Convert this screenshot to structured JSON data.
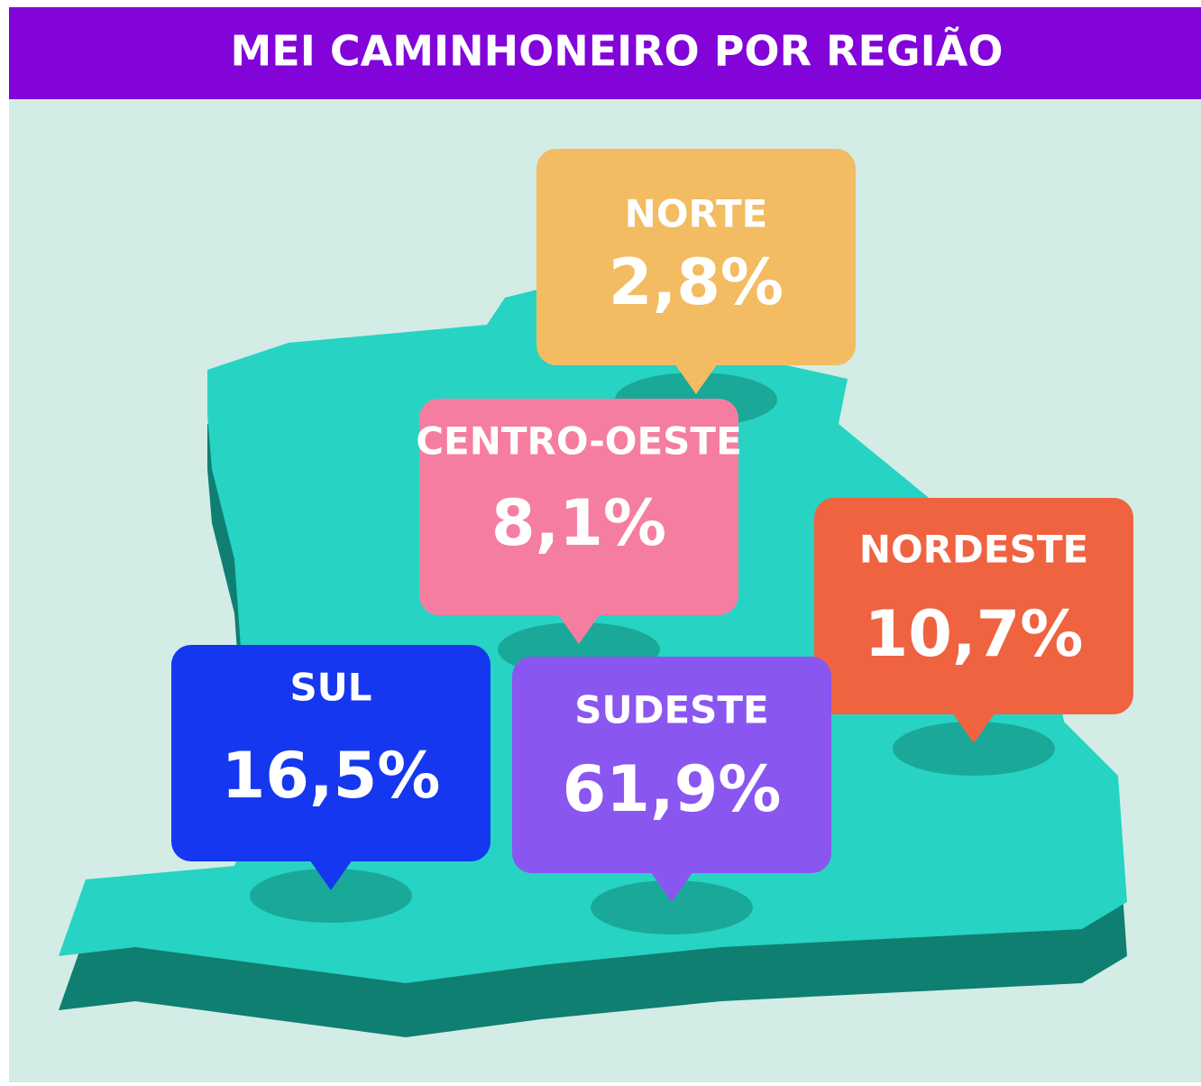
{
  "title": "MEI CAMINHONEIRO POR REGIÃO",
  "regions": [
    {
      "name": "NORTE",
      "share": "2,8%"
    },
    {
      "name": "CENTRO-OESTE",
      "share": "8,1%"
    },
    {
      "name": "NORDESTE",
      "share": "10,7%"
    },
    {
      "name": "SUL",
      "share": "16,5%"
    },
    {
      "name": "SUDESTE",
      "share": "61,9%"
    }
  ]
}
